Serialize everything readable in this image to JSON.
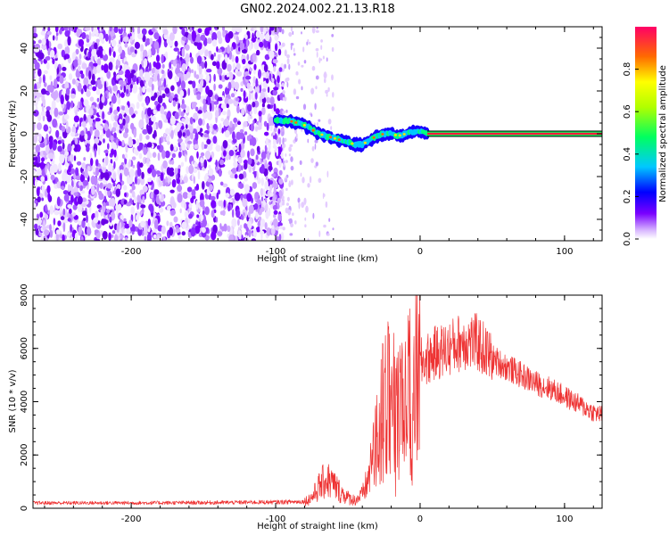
{
  "title": "GN02.2024.002.21.13.R18",
  "chart_data": [
    {
      "type": "heatmap",
      "name": "spectrogram",
      "xlabel": "Height of straight line (km)",
      "ylabel": "Frequency (Hz)",
      "xlim": [
        -268,
        126
      ],
      "ylim": [
        -50,
        50
      ],
      "x_ticks": [
        "-200",
        "-100",
        "0",
        "100"
      ],
      "x_tick_values": [
        -200,
        -100,
        0,
        100
      ],
      "y_ticks": [
        "-40",
        "-20",
        "0",
        "20",
        "40"
      ],
      "y_tick_values": [
        -40,
        -20,
        0,
        20,
        40
      ],
      "colorbar": {
        "label": "Normalized spectral amplitude",
        "range": [
          0,
          1
        ],
        "ticks": [
          "0.0",
          "0.2",
          "0.4",
          "0.6",
          "0.8"
        ],
        "tick_values": [
          0.0,
          0.2,
          0.4,
          0.6,
          0.8
        ]
      },
      "noise_region_x": [
        -268,
        -95
      ],
      "sparse_noise_x": [
        -95,
        -60
      ],
      "signal_track": {
        "x": [
          -100,
          -90,
          -80,
          -75,
          -70,
          -65,
          -60,
          -55,
          -50,
          -45,
          -40,
          -35,
          -30,
          -25,
          -20,
          -15,
          -10,
          -5,
          0,
          5,
          126
        ],
        "freq": [
          6,
          6,
          4,
          2,
          0,
          -1,
          -2,
          -3,
          -4,
          -5,
          -5,
          -3,
          -1,
          0,
          0,
          -1,
          0,
          1,
          1,
          0,
          0
        ]
      },
      "carrier_line": {
        "x_start": 5,
        "x_end": 126,
        "freq": 0
      }
    },
    {
      "type": "line",
      "name": "snr",
      "xlabel": "Height of straight line (km)",
      "ylabel": "SNR (10 * v/v)",
      "xlim": [
        -268,
        126
      ],
      "ylim": [
        0,
        8000
      ],
      "x_ticks": [
        "-200",
        "-100",
        "0",
        "100"
      ],
      "x_tick_values": [
        -200,
        -100,
        0,
        100
      ],
      "y_ticks": [
        "0",
        "2000",
        "4000",
        "6000",
        "8000"
      ],
      "y_tick_values": [
        0,
        2000,
        4000,
        6000,
        8000
      ],
      "color": "#ee3333",
      "series_envelope": {
        "x": [
          -268,
          -200,
          -150,
          -100,
          -80,
          -75,
          -70,
          -65,
          -60,
          -55,
          -50,
          -45,
          -40,
          -35,
          -30,
          -25,
          -20,
          -15,
          -10,
          -5,
          0,
          10,
          20,
          30,
          40,
          50,
          60,
          70,
          80,
          90,
          100,
          110,
          120,
          126
        ],
        "y": [
          200,
          200,
          210,
          230,
          250,
          400,
          800,
          1100,
          900,
          600,
          400,
          300,
          500,
          1200,
          2500,
          3800,
          4300,
          4000,
          3800,
          4300,
          5400,
          5800,
          6000,
          6300,
          6200,
          5600,
          5300,
          5000,
          4700,
          4500,
          4200,
          3900,
          3600,
          3500
        ]
      }
    }
  ]
}
